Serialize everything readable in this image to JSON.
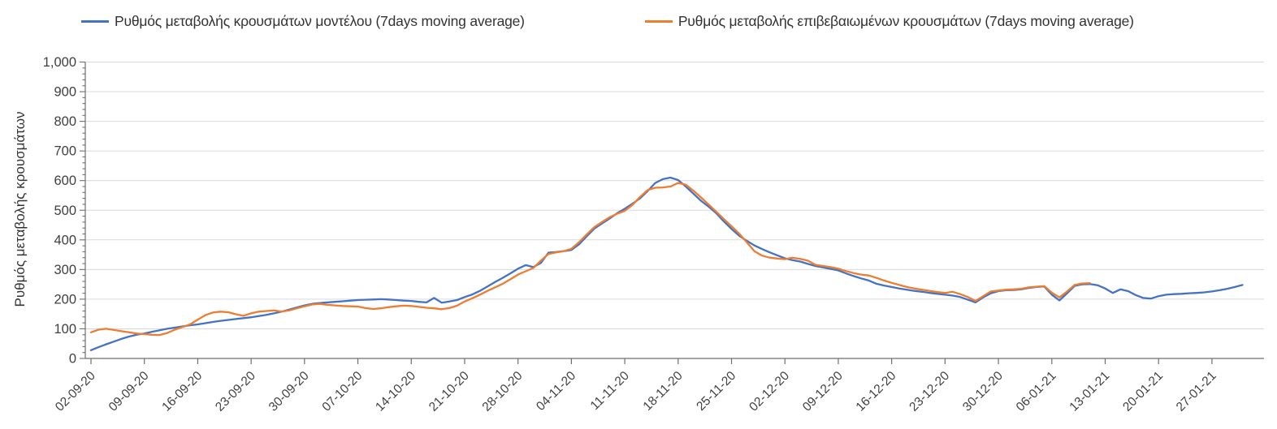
{
  "legend": [
    {
      "label": "Ρυθμός μεταβολής κρουσμάτων μοντέλου (7days moving average)",
      "color": "#4472C4"
    },
    {
      "label": "Ρυθμός μεταβολής επιβεβαιωμένων κρουσμάτων (7days moving average)",
      "color": "#ED7D31"
    }
  ],
  "chart_data": {
    "type": "line",
    "title": "",
    "xlabel": "",
    "ylabel": "Ρυθμός μεταβολής κρουσμάτων",
    "ylim": [
      0,
      1000
    ],
    "ytick_step": 100,
    "ytick_labels": [
      "0",
      "100",
      "200",
      "300",
      "400",
      "500",
      "600",
      "700",
      "800",
      "900",
      "1,000"
    ],
    "xtick_labels": [
      "02-09-20",
      "09-09-20",
      "16-09-20",
      "23-09-20",
      "30-09-20",
      "07-10-20",
      "14-10-20",
      "21-10-20",
      "28-10-20",
      "04-11-20",
      "11-11-20",
      "18-11-20",
      "25-11-20",
      "02-12-20",
      "09-12-20",
      "16-12-20",
      "23-12-20",
      "30-12-20",
      "06-01-21",
      "13-01-21",
      "20-01-21",
      "27-01-21"
    ],
    "x_frequency": "daily",
    "x_start": "02-09-20",
    "grid": true,
    "legend_position": "top",
    "axis_color": "#6e6e6e",
    "grid_color": "#d9d9d9",
    "label_color": "#404040",
    "series": [
      {
        "name": "Ρυθμός μεταβολής κρουσμάτων μοντέλου (7days moving average)",
        "color": "#4472C4",
        "values": [
          28,
          38,
          48,
          57,
          66,
          74,
          80,
          84,
          90,
          95,
          100,
          104,
          108,
          112,
          115,
          119,
          123,
          127,
          130,
          133,
          136,
          139,
          143,
          147,
          152,
          158,
          165,
          172,
          179,
          184,
          187,
          189,
          191,
          193,
          195,
          197,
          198,
          199,
          200,
          199,
          197,
          195,
          194,
          191,
          189,
          204,
          188,
          192,
          197,
          207,
          216,
          228,
          243,
          258,
          272,
          287,
          303,
          315,
          308,
          322,
          357,
          359,
          362,
          366,
          385,
          412,
          438,
          455,
          472,
          490,
          505,
          522,
          540,
          565,
          592,
          605,
          610,
          602,
          580,
          556,
          532,
          512,
          490,
          462,
          437,
          414,
          397,
          381,
          369,
          358,
          348,
          338,
          332,
          327,
          319,
          312,
          307,
          302,
          297,
          287,
          278,
          270,
          263,
          252,
          246,
          241,
          236,
          232,
          228,
          225,
          221,
          218,
          215,
          212,
          207,
          198,
          189,
          206,
          220,
          227,
          230,
          231,
          233,
          238,
          241,
          243,
          215,
          196,
          220,
          245,
          250,
          251,
          247,
          236,
          221,
          233,
          227,
          214,
          204,
          202,
          210,
          215,
          217,
          218,
          220,
          221,
          223,
          226,
          230,
          235,
          241,
          248
        ]
      },
      {
        "name": "Ρυθμός μεταβολής επιβεβαιωμένων κρουσμάτων (7days moving average)",
        "color": "#ED7D31",
        "values": [
          88,
          97,
          100,
          96,
          92,
          88,
          84,
          82,
          80,
          79,
          86,
          97,
          106,
          115,
          131,
          146,
          155,
          158,
          156,
          149,
          144,
          152,
          158,
          160,
          162,
          158,
          162,
          169,
          176,
          182,
          184,
          181,
          179,
          177,
          176,
          175,
          170,
          167,
          169,
          173,
          176,
          178,
          177,
          174,
          171,
          169,
          166,
          170,
          178,
          192,
          203,
          215,
          228,
          240,
          252,
          267,
          283,
          294,
          305,
          330,
          352,
          358,
          362,
          370,
          392,
          418,
          443,
          460,
          476,
          488,
          498,
          518,
          545,
          568,
          576,
          577,
          580,
          592,
          586,
          566,
          543,
          519,
          495,
          470,
          446,
          421,
          392,
          362,
          347,
          340,
          337,
          335,
          340,
          336,
          330,
          316,
          312,
          308,
          303,
          295,
          288,
          283,
          280,
          272,
          263,
          255,
          248,
          241,
          236,
          232,
          228,
          224,
          221,
          225,
          217,
          207,
          194,
          210,
          226,
          229,
          232,
          233,
          235,
          240,
          242,
          244,
          222,
          206,
          226,
          248,
          253,
          254
        ]
      }
    ]
  }
}
